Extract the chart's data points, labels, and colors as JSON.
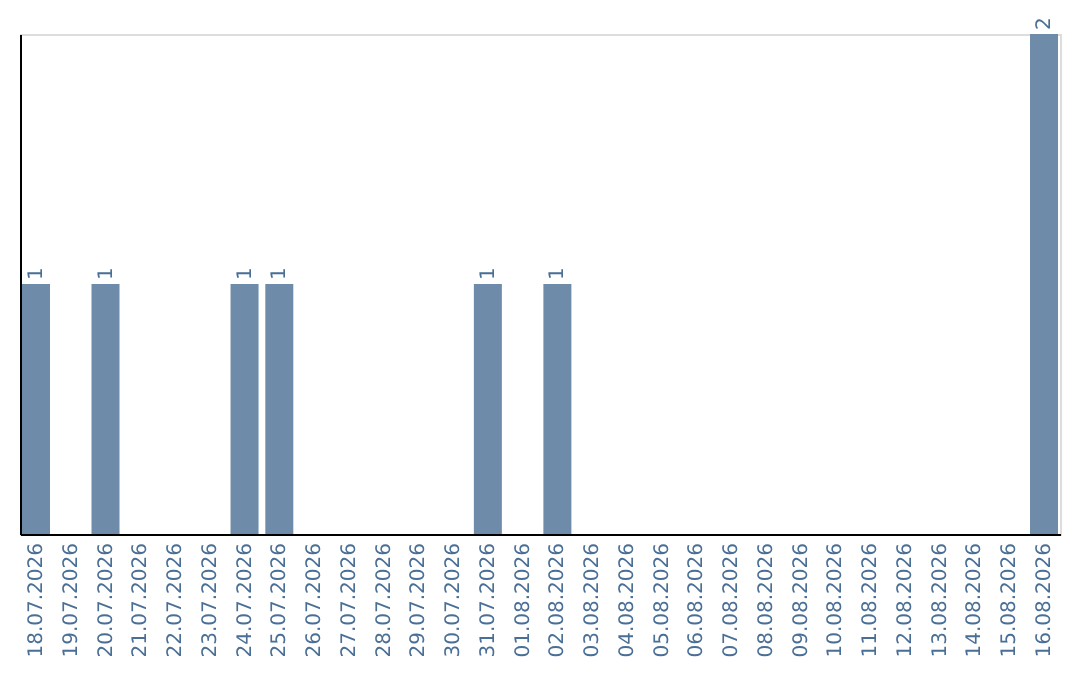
{
  "chart_data": {
    "type": "bar",
    "categories": [
      "18.07.2026",
      "19.07.2026",
      "20.07.2026",
      "21.07.2026",
      "22.07.2026",
      "23.07.2026",
      "24.07.2026",
      "25.07.2026",
      "26.07.2026",
      "27.07.2026",
      "28.07.2026",
      "29.07.2026",
      "30.07.2026",
      "31.07.2026",
      "01.08.2026",
      "02.08.2026",
      "03.08.2026",
      "04.08.2026",
      "05.08.2026",
      "06.08.2026",
      "07.08.2026",
      "08.08.2026",
      "09.08.2026",
      "10.08.2026",
      "11.08.2026",
      "12.08.2026",
      "13.08.2026",
      "14.08.2026",
      "15.08.2026",
      "16.08.2026"
    ],
    "values": [
      1,
      0,
      1,
      0,
      0,
      0,
      1,
      1,
      0,
      0,
      0,
      0,
      0,
      1,
      0,
      1,
      0,
      0,
      0,
      0,
      0,
      0,
      0,
      0,
      0,
      0,
      0,
      0,
      0,
      2
    ],
    "value_labels": [
      "1",
      null,
      "1",
      null,
      null,
      null,
      "1",
      "1",
      null,
      null,
      null,
      null,
      null,
      "1",
      null,
      "1",
      null,
      null,
      null,
      null,
      null,
      null,
      null,
      null,
      null,
      null,
      null,
      null,
      null,
      "2"
    ],
    "color": "#6e8caa",
    "grid": false,
    "tick_labels": "x"
  }
}
